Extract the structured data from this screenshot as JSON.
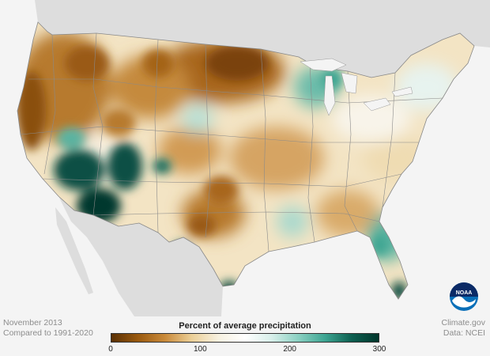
{
  "caption": {
    "month": "November 2013",
    "baseline": "Compared to 1991-2020"
  },
  "credit": {
    "source": "Climate.gov",
    "data": "Data: NCEI"
  },
  "legend": {
    "title": "Percent of average precipitation",
    "ticks": [
      "0",
      "100",
      "200",
      "300"
    ],
    "colors": [
      "#5a3005",
      "#9a5a0f",
      "#c98a3a",
      "#ebcf97",
      "#f7f1e0",
      "#ffffff",
      "#d8efea",
      "#8ad0c2",
      "#3da592",
      "#0d5f50",
      "#01352b"
    ]
  },
  "logo": {
    "icon": "noaa-logo-icon",
    "text": "NOAA"
  },
  "colors": {
    "land_background": "#dddddd",
    "ocean": "#f4f4f4",
    "state_lines": "#8a8a8a",
    "dry_strong": "#8a4f10",
    "dry": "#c58a3c",
    "dry_light": "#e6c68b",
    "wet_light": "#c4e6df",
    "wet": "#5ab3a0",
    "wet_strong": "#0b4f44"
  }
}
